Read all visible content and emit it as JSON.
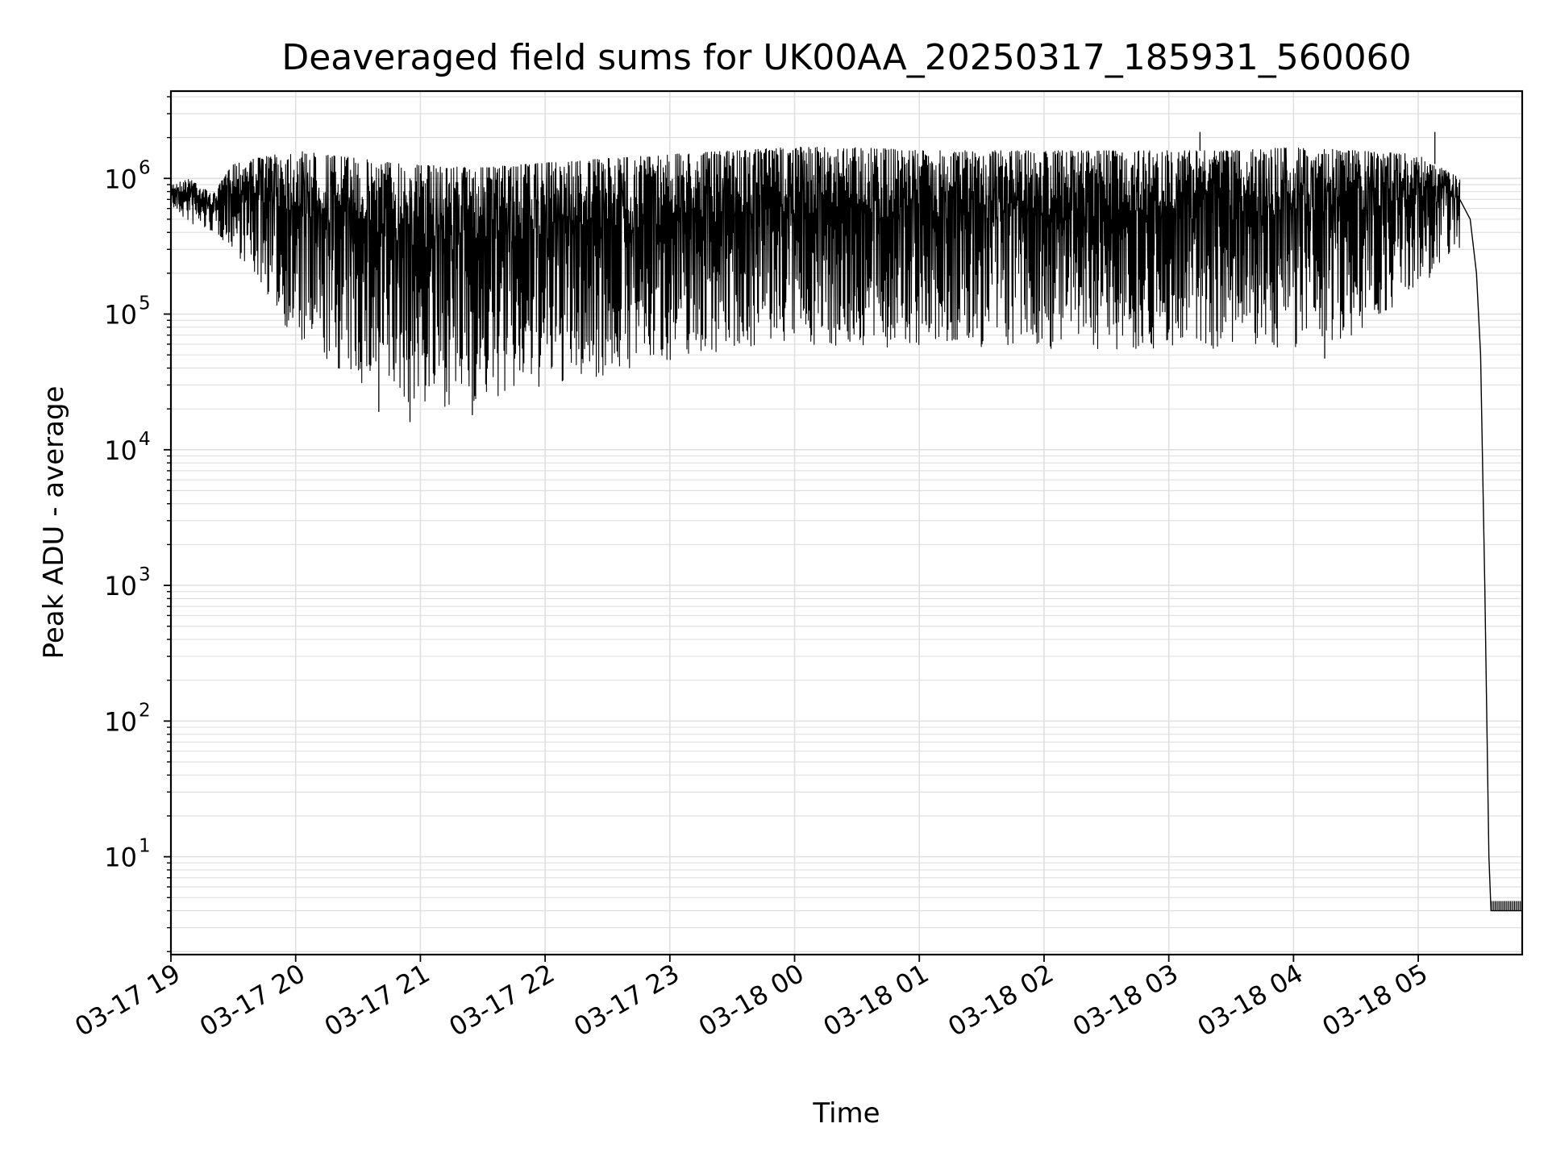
{
  "chart_data": {
    "type": "line",
    "title": "Deaveraged field sums for UK00AA_20250317_185931_560060",
    "xlabel": "Time",
    "ylabel": "Peak ADU - average",
    "yscale": "log",
    "ylim": [
      1.9,
      4400000
    ],
    "xlim": [
      "2025-03-17 19:00",
      "2025-03-18 05:50"
    ],
    "grid": true,
    "legend": "none",
    "line_color": "#000000",
    "grid_color": "#e0e0e0",
    "x_ticks": [
      "03-17 19",
      "03-17 20",
      "03-17 21",
      "03-17 22",
      "03-17 23",
      "03-18 00",
      "03-18 01",
      "03-18 02",
      "03-18 03",
      "03-18 04",
      "03-18 05"
    ],
    "y_ticks": [
      {
        "value": 10,
        "base": "10",
        "exp": "1"
      },
      {
        "value": 100,
        "base": "10",
        "exp": "2"
      },
      {
        "value": 1000,
        "base": "10",
        "exp": "3"
      },
      {
        "value": 10000,
        "base": "10",
        "exp": "4"
      },
      {
        "value": 100000,
        "base": "10",
        "exp": "5"
      },
      {
        "value": 1000000,
        "base": "10",
        "exp": "6"
      }
    ],
    "series": [
      {
        "upper_envelope": {
          "x": [
            "2025-03-17 19:00",
            "2025-03-17 19:10",
            "2025-03-17 19:20",
            "2025-03-17 19:30",
            "2025-03-17 20:00",
            "2025-03-17 20:30",
            "2025-03-17 21:00",
            "2025-03-17 21:30",
            "2025-03-17 22:00",
            "2025-03-17 22:30",
            "2025-03-17 23:00",
            "2025-03-17 23:30",
            "2025-03-18 00:00",
            "2025-03-18 00:30",
            "2025-03-18 01:00",
            "2025-03-18 01:30",
            "2025-03-18 02:00",
            "2025-03-18 02:30",
            "2025-03-18 03:00",
            "2025-03-18 03:30",
            "2025-03-18 04:00",
            "2025-03-18 04:30",
            "2025-03-18 05:00",
            "2025-03-18 05:20"
          ],
          "y": [
            900000,
            1000000,
            750000,
            1300000,
            1600000,
            1400000,
            1250000,
            1200000,
            1300000,
            1400000,
            1500000,
            1600000,
            1700000,
            1700000,
            1600000,
            1600000,
            1600000,
            1600000,
            1600000,
            1600000,
            1700000,
            1600000,
            1500000,
            1000000
          ]
        },
        "lower_envelope": {
          "x": [
            "2025-03-17 19:00",
            "2025-03-17 19:10",
            "2025-03-17 19:20",
            "2025-03-17 19:30",
            "2025-03-17 19:45",
            "2025-03-17 20:00",
            "2025-03-17 20:30",
            "2025-03-17 21:00",
            "2025-03-17 21:30",
            "2025-03-17 22:00",
            "2025-03-17 22:30",
            "2025-03-17 23:00",
            "2025-03-17 23:30",
            "2025-03-18 00:00",
            "2025-03-18 00:30",
            "2025-03-18 01:00",
            "2025-03-18 01:30",
            "2025-03-18 02:00",
            "2025-03-18 02:30",
            "2025-03-18 03:00",
            "2025-03-18 03:30",
            "2025-03-18 04:00",
            "2025-03-18 04:30",
            "2025-03-18 05:00",
            "2025-03-18 05:20"
          ],
          "y": [
            600000,
            450000,
            400000,
            300000,
            150000,
            60000,
            30000,
            20000,
            22000,
            28000,
            35000,
            45000,
            55000,
            60000,
            55000,
            55000,
            55000,
            55000,
            55000,
            55000,
            55000,
            55000,
            70000,
            150000,
            300000
          ]
        },
        "tail": {
          "x": [
            "2025-03-18 05:20",
            "2025-03-18 05:25",
            "2025-03-18 05:28",
            "2025-03-18 05:30",
            "2025-03-18 05:32",
            "2025-03-18 05:34",
            "2025-03-18 05:35",
            "2025-03-18 05:50"
          ],
          "y": [
            700000,
            500000,
            200000,
            50000,
            1000,
            10,
            4,
            4
          ]
        },
        "spikes": [
          {
            "x": "2025-03-17 20:40",
            "y": 19000
          },
          {
            "x": "2025-03-17 20:55",
            "y": 16000
          },
          {
            "x": "2025-03-17 21:25",
            "y": 18000
          },
          {
            "x": "2025-03-18 04:15",
            "y": 47000
          },
          {
            "x": "2025-03-18 03:15",
            "y": 2200000
          },
          {
            "x": "2025-03-18 05:08",
            "y": 2200000
          }
        ]
      }
    ]
  }
}
